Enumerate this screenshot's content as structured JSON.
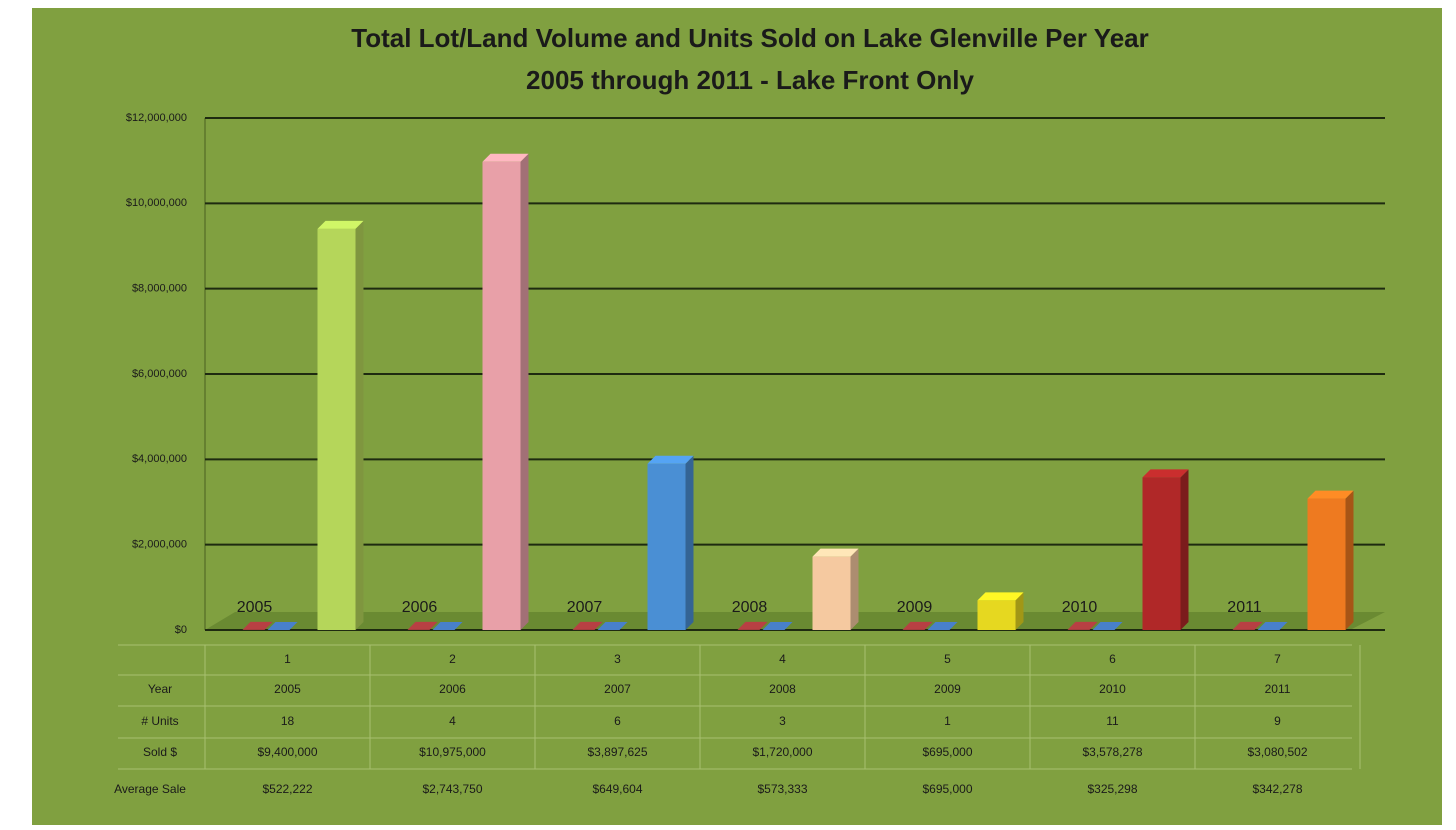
{
  "chart_data": {
    "type": "bar3d",
    "title": "Total Lot/Land Volume and Units Sold on Lake Glenville Per Year",
    "subtitle": "2005 through 2011 - Lake Front Only",
    "categories": [
      "1",
      "2",
      "3",
      "4",
      "5",
      "6",
      "7"
    ],
    "series": [
      {
        "name": "Year",
        "color": "#a0383a",
        "values": [
          2005,
          2006,
          2007,
          2008,
          2009,
          2010,
          2011
        ]
      },
      {
        "name": "# Units",
        "color": "#3f6fb0",
        "values": [
          18,
          4,
          6,
          3,
          1,
          11,
          9
        ]
      },
      {
        "name": "Sold $",
        "colors": [
          "#b5d65a",
          "#e8a0a8",
          "#4a8fd4",
          "#f5c9a0",
          "#e6d820",
          "#b02828",
          "#ee7a20"
        ],
        "values": [
          9400000,
          10975000,
          3897625,
          1720000,
          695000,
          3578278,
          3080502
        ],
        "value_labels": [
          "$9,400,000",
          "$10,975,000",
          "$3,897,625",
          "$1,720,000",
          "$695,000",
          "$3,578,278",
          "$3,080,502"
        ]
      }
    ],
    "average_sale": {
      "name": "Average Sale",
      "values": [
        "$522,222",
        "$2,743,750",
        "$649,604",
        "$573,333",
        "$695,000",
        "$325,298",
        "$342,278"
      ]
    },
    "ylim": [
      0,
      12000000
    ],
    "yticks": [
      {
        "value": 0,
        "label": "$0"
      },
      {
        "value": 2000000,
        "label": "$2,000,000"
      },
      {
        "value": 4000000,
        "label": "$4,000,000"
      },
      {
        "value": 6000000,
        "label": "$6,000,000"
      },
      {
        "value": 8000000,
        "label": "$8,000,000"
      },
      {
        "value": 10000000,
        "label": "$10,000,000"
      },
      {
        "value": 12000000,
        "label": "$12,000,000"
      }
    ],
    "grid": true
  }
}
